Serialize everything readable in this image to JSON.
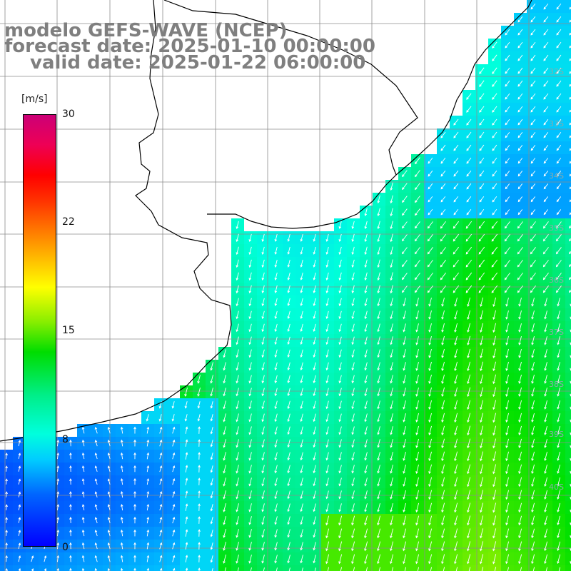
{
  "title": {
    "line1": "modelo GEFS-WAVE (NCEP)",
    "line2": "forecast date: 2025-01-10 00:00:00",
    "line3": "valid date: 2025-01-22 06:00:00"
  },
  "colorbar": {
    "unit": "[m/s]",
    "ticks": [
      "30",
      "22",
      "15",
      "8",
      "0"
    ],
    "tick_values": [
      30,
      22,
      15,
      8,
      0
    ],
    "range": [
      0,
      30
    ]
  },
  "lat_labels": [
    "32S",
    "33S",
    "34S",
    "35S",
    "36S",
    "37S",
    "38S",
    "39S",
    "40S"
  ],
  "colors": {
    "land": "#ffffff",
    "grid": "#8c8c8c",
    "coast": "#000000",
    "arrow": "#ffffff",
    "title": "#7f7f7f"
  }
}
